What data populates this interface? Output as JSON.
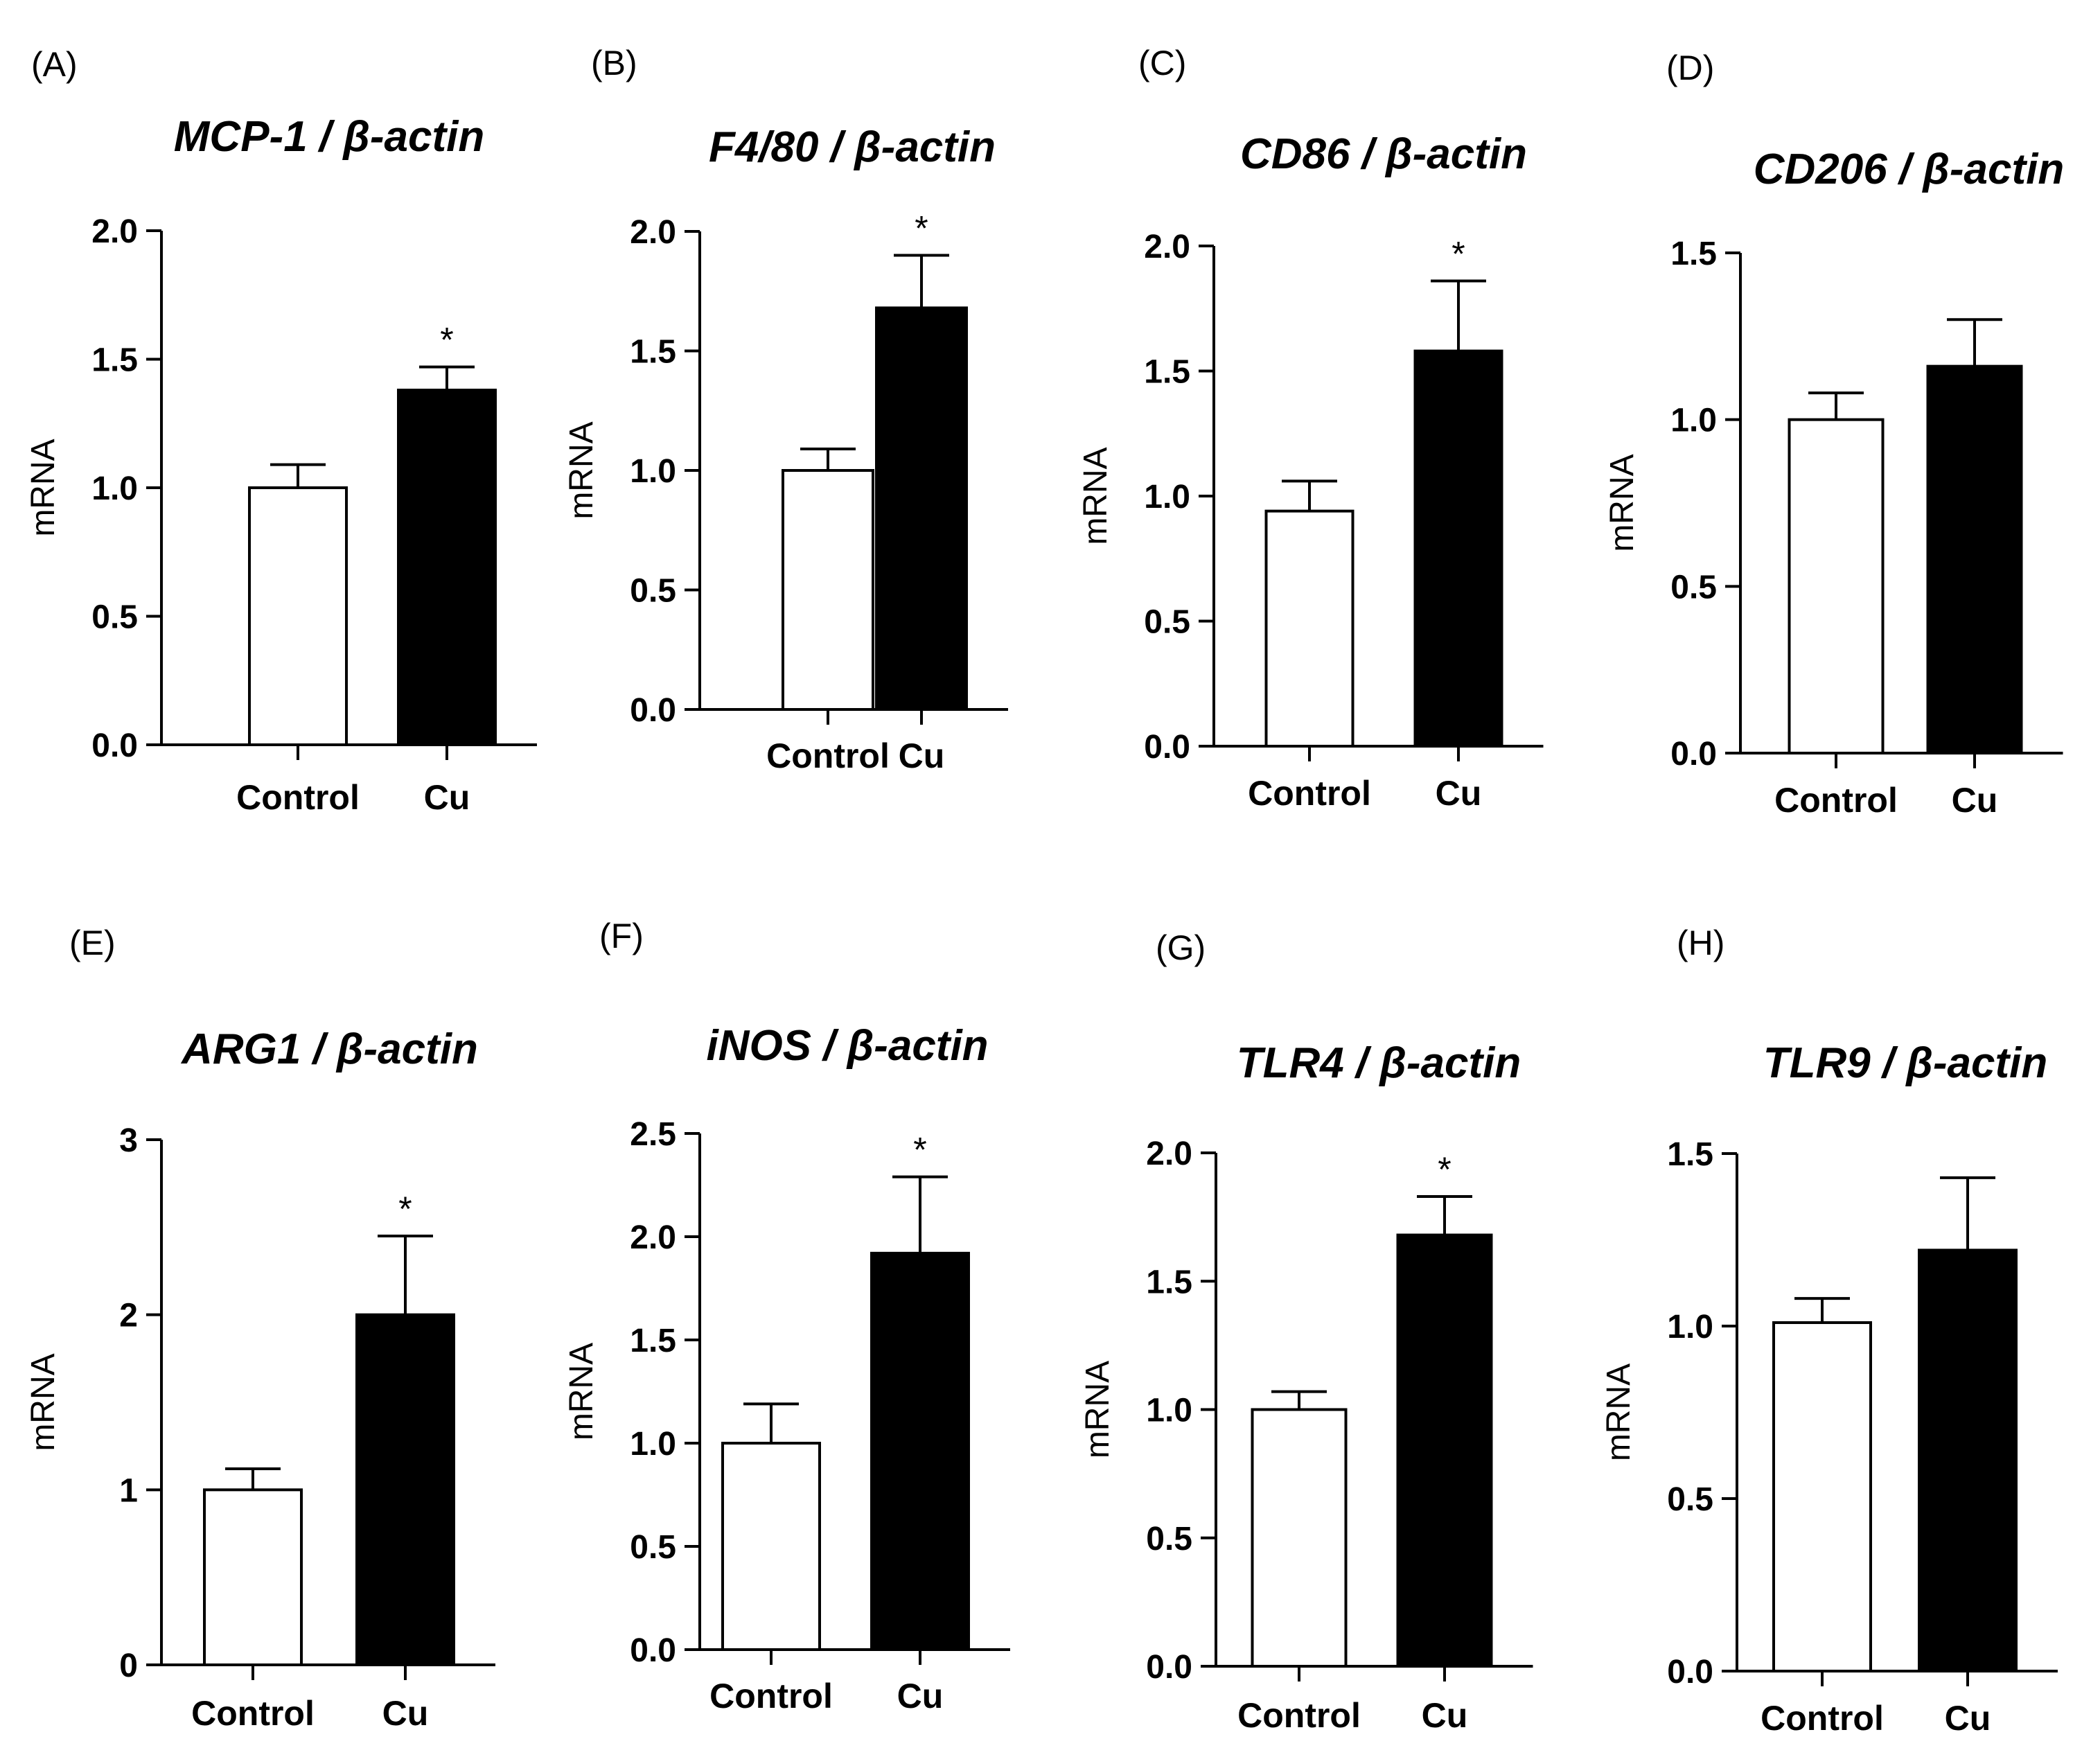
{
  "chart_data": [
    {
      "panel_label": "(A)",
      "type": "bar",
      "title_gene": "MCP-1",
      "title_suffix": " / β-actin",
      "ylabel": "mRNA",
      "ylim": [
        0,
        2.0
      ],
      "yticks": [
        "0.0",
        "0.5",
        "1.0",
        "1.5",
        "2.0"
      ],
      "categories": [
        "Control",
        "Cu"
      ],
      "values": [
        1.0,
        1.38
      ],
      "errors": [
        0.09,
        0.09
      ],
      "significance": [
        "",
        "*"
      ]
    },
    {
      "panel_label": "(B)",
      "type": "bar",
      "title_gene": "F4/80",
      "title_suffix": " / β-actin",
      "ylabel": "mRNA",
      "ylim": [
        0,
        2.0
      ],
      "yticks": [
        "0.0",
        "0.5",
        "1.0",
        "1.5",
        "2.0"
      ],
      "categories": [
        "Control",
        "Cu"
      ],
      "values": [
        1.0,
        1.68
      ],
      "errors": [
        0.09,
        0.22
      ],
      "significance": [
        "",
        "*"
      ]
    },
    {
      "panel_label": "(C)",
      "type": "bar",
      "title_gene": "CD86",
      "title_suffix": " / β-actin",
      "ylabel": "mRNA",
      "ylim": [
        0,
        2.0
      ],
      "yticks": [
        "0.0",
        "0.5",
        "1.0",
        "1.5",
        "2.0"
      ],
      "categories": [
        "Control",
        "Cu"
      ],
      "values": [
        0.94,
        1.58
      ],
      "errors": [
        0.12,
        0.28
      ],
      "significance": [
        "",
        "*"
      ]
    },
    {
      "panel_label": "(D)",
      "type": "bar",
      "title_gene": "CD206",
      "title_suffix": " / β-actin",
      "ylabel": "mRNA",
      "ylim": [
        0,
        1.5
      ],
      "yticks": [
        "0.0",
        "0.5",
        "1.0",
        "1.5"
      ],
      "categories": [
        "Control",
        "Cu"
      ],
      "values": [
        1.0,
        1.16
      ],
      "errors": [
        0.08,
        0.14
      ],
      "significance": [
        "",
        ""
      ]
    },
    {
      "panel_label": "(E)",
      "type": "bar",
      "title_gene": "ARG1",
      "title_suffix": " / β-actin",
      "ylabel": "mRNA",
      "ylim": [
        0,
        3
      ],
      "yticks": [
        "0",
        "1",
        "2",
        "3"
      ],
      "categories": [
        "Control",
        "Cu"
      ],
      "values": [
        1.0,
        2.0
      ],
      "errors": [
        0.12,
        0.45
      ],
      "significance": [
        "",
        "*"
      ]
    },
    {
      "panel_label": "(F)",
      "type": "bar",
      "title_gene": "iNOS",
      "title_suffix": " / β-actin",
      "ylabel": "mRNA",
      "ylim": [
        0,
        2.5
      ],
      "yticks": [
        "0.0",
        "0.5",
        "1.0",
        "1.5",
        "2.0",
        "2.5"
      ],
      "categories": [
        "Control",
        "Cu"
      ],
      "values": [
        1.0,
        1.92
      ],
      "errors": [
        0.19,
        0.37
      ],
      "significance": [
        "",
        "*"
      ]
    },
    {
      "panel_label": "(G)",
      "type": "bar",
      "title_gene": "TLR4",
      "title_suffix": " / β-actin",
      "ylabel": "mRNA",
      "ylim": [
        0,
        2.0
      ],
      "yticks": [
        "0.0",
        "0.5",
        "1.0",
        "1.5",
        "2.0"
      ],
      "categories": [
        "Control",
        "Cu"
      ],
      "values": [
        1.0,
        1.68
      ],
      "errors": [
        0.07,
        0.15
      ],
      "significance": [
        "",
        "*"
      ]
    },
    {
      "panel_label": "(H)",
      "type": "bar",
      "title_gene": "TLR9",
      "title_suffix": " / β-actin",
      "ylabel": "mRNA",
      "ylim": [
        0,
        1.5
      ],
      "yticks": [
        "0.0",
        "0.5",
        "1.0",
        "1.5"
      ],
      "categories": [
        "Control",
        "Cu"
      ],
      "values": [
        1.01,
        1.22
      ],
      "errors": [
        0.07,
        0.21
      ],
      "significance": [
        "",
        ""
      ]
    }
  ],
  "colors": {
    "control_fill": "#ffffff",
    "cu_fill": "#000000",
    "axis": "#000000"
  }
}
